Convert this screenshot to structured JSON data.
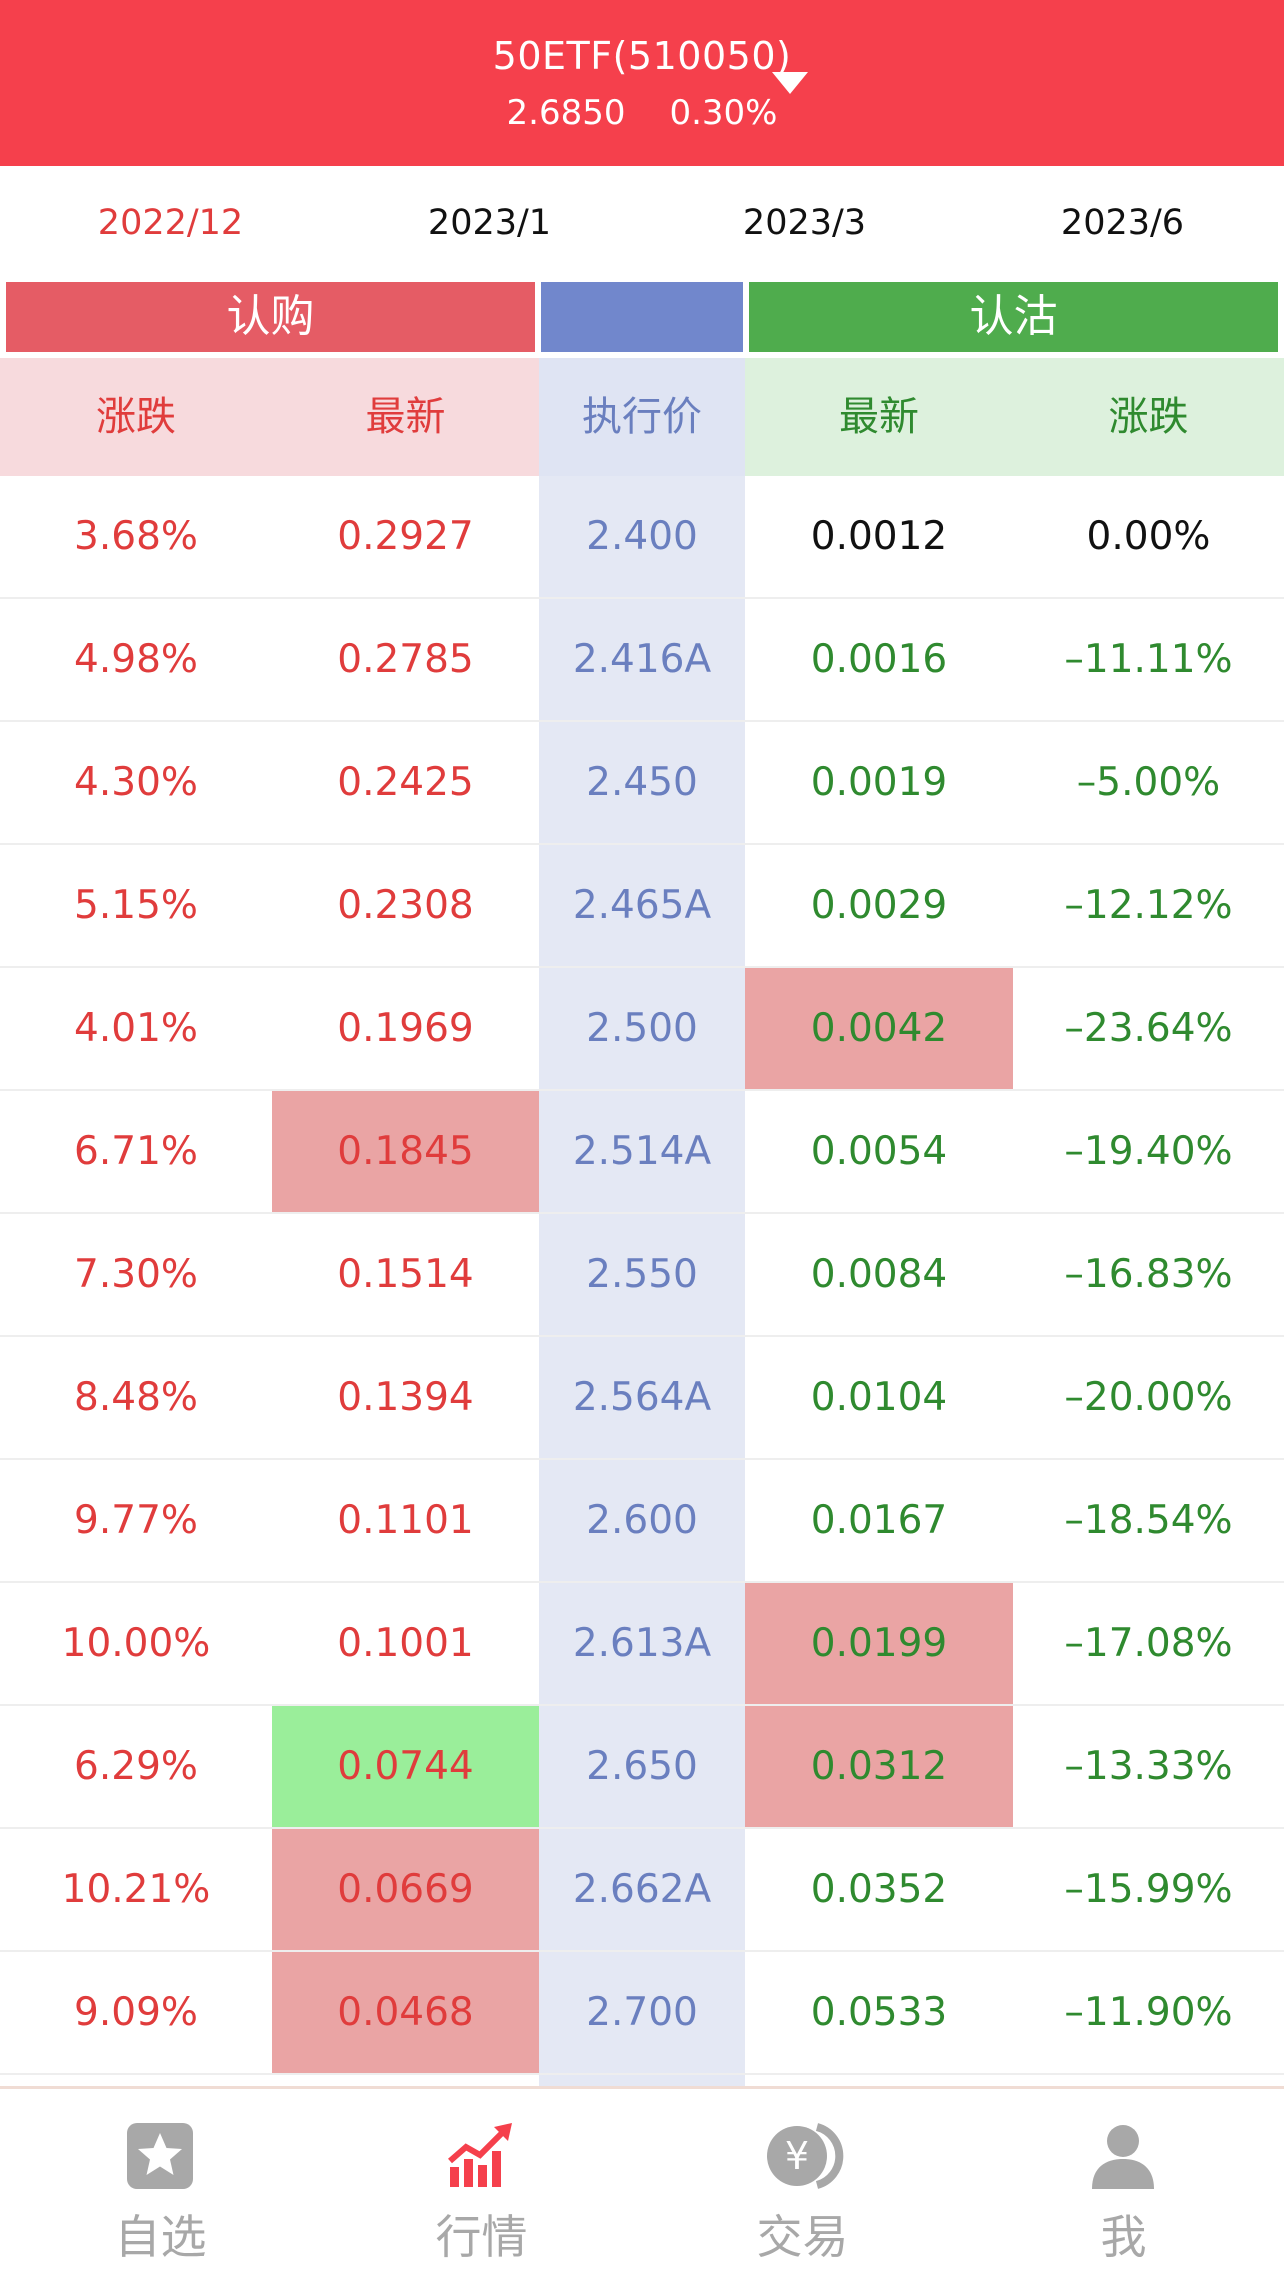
{
  "header": {
    "title": "50ETF(510050)",
    "price": "2.6850",
    "change": "0.30%"
  },
  "tabs": [
    "2022/12",
    "2023/1",
    "2023/3",
    "2023/6"
  ],
  "sections": {
    "call": "认购",
    "put": "认沽"
  },
  "columns": {
    "call_change": "涨跌",
    "call_latest": "最新",
    "strike": "执行价",
    "put_latest": "最新",
    "put_change": "涨跌"
  },
  "rows": [
    {
      "call_change": "3.68%",
      "call_latest": "0.2927",
      "strike": "2.400",
      "put_latest": "0.0012",
      "put_change": "0.00%"
    },
    {
      "call_change": "4.98%",
      "call_latest": "0.2785",
      "strike": "2.416A",
      "put_latest": "0.0016",
      "put_change": "–11.11%"
    },
    {
      "call_change": "4.30%",
      "call_latest": "0.2425",
      "strike": "2.450",
      "put_latest": "0.0019",
      "put_change": "–5.00%"
    },
    {
      "call_change": "5.15%",
      "call_latest": "0.2308",
      "strike": "2.465A",
      "put_latest": "0.0029",
      "put_change": "–12.12%"
    },
    {
      "call_change": "4.01%",
      "call_latest": "0.1969",
      "strike": "2.500",
      "put_latest": "0.0042",
      "put_change": "–23.64%"
    },
    {
      "call_change": "6.71%",
      "call_latest": "0.1845",
      "strike": "2.514A",
      "put_latest": "0.0054",
      "put_change": "–19.40%"
    },
    {
      "call_change": "7.30%",
      "call_latest": "0.1514",
      "strike": "2.550",
      "put_latest": "0.0084",
      "put_change": "–16.83%"
    },
    {
      "call_change": "8.48%",
      "call_latest": "0.1394",
      "strike": "2.564A",
      "put_latest": "0.0104",
      "put_change": "–20.00%"
    },
    {
      "call_change": "9.77%",
      "call_latest": "0.1101",
      "strike": "2.600",
      "put_latest": "0.0167",
      "put_change": "–18.54%"
    },
    {
      "call_change": "10.00%",
      "call_latest": "0.1001",
      "strike": "2.613A",
      "put_latest": "0.0199",
      "put_change": "–17.08%"
    },
    {
      "call_change": "6.29%",
      "call_latest": "0.0744",
      "strike": "2.650",
      "put_latest": "0.0312",
      "put_change": "–13.33%"
    },
    {
      "call_change": "10.21%",
      "call_latest": "0.0669",
      "strike": "2.662A",
      "put_latest": "0.0352",
      "put_change": "–15.99%"
    },
    {
      "call_change": "9.09%",
      "call_latest": "0.0468",
      "strike": "2.700",
      "put_latest": "0.0533",
      "put_change": "–11.90%"
    }
  ],
  "nav": [
    {
      "label": "自选",
      "icon": "star-icon"
    },
    {
      "label": "行情",
      "icon": "chart-icon"
    },
    {
      "label": "交易",
      "icon": "yen-icon"
    },
    {
      "label": "我",
      "icon": "user-icon"
    }
  ],
  "colors": {
    "brand_red": "#f5404c",
    "call_red": "#e03c3c",
    "put_green": "#2f8a2f",
    "strike_blue": "#6a7fbf",
    "flash_red": "#eaa4a4",
    "flash_green": "#9aee9a"
  }
}
